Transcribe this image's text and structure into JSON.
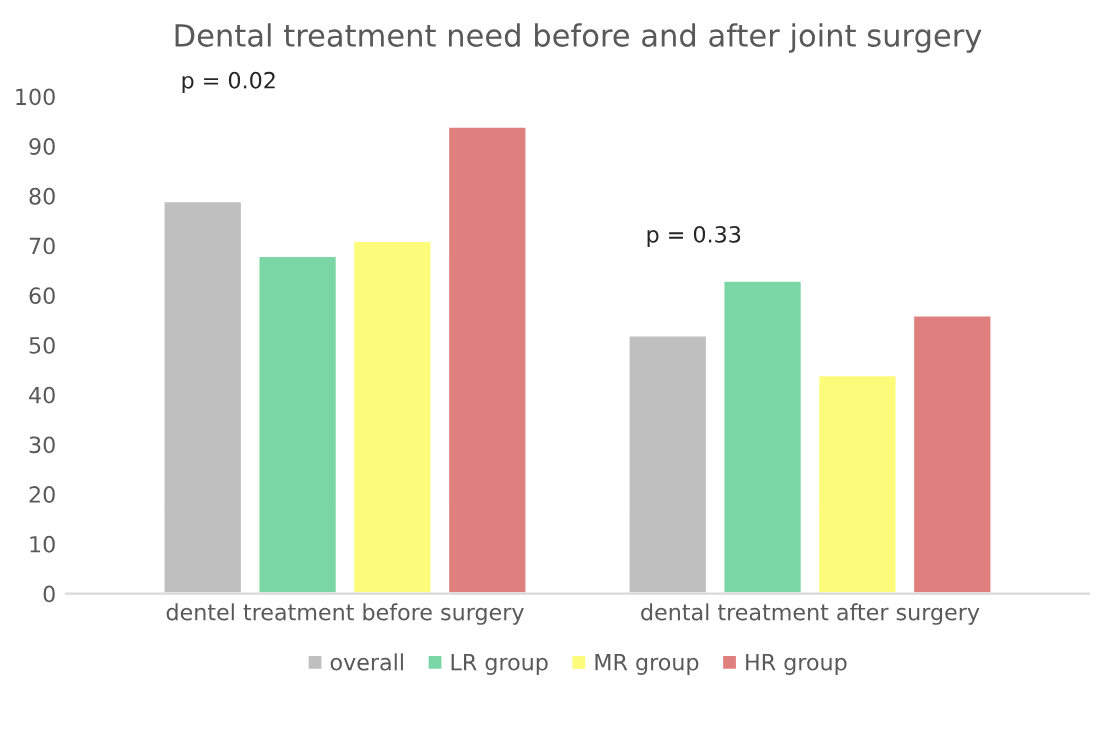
{
  "chart_data": {
    "type": "bar",
    "title": "Dental treatment need before and after joint surgery",
    "categories": [
      "dentel treatment before surgery",
      "dental treatment after surgery"
    ],
    "series": [
      {
        "name": "overall",
        "color": "#bfbfbf",
        "values": [
          79,
          52
        ]
      },
      {
        "name": "LR group",
        "color": "#7ad6a4",
        "values": [
          68,
          63
        ]
      },
      {
        "name": "MR group",
        "color": "#fdfc7a",
        "values": [
          71,
          44
        ]
      },
      {
        "name": "HR group",
        "color": "#df807f",
        "values": [
          94,
          56
        ]
      }
    ],
    "ylim": [
      0,
      100
    ],
    "yticks": [
      0,
      10,
      20,
      30,
      40,
      50,
      60,
      70,
      80,
      90,
      100
    ],
    "annotations": [
      "p = 0.02",
      "p = 0.33"
    ],
    "grid": false,
    "legend": "bottom"
  }
}
